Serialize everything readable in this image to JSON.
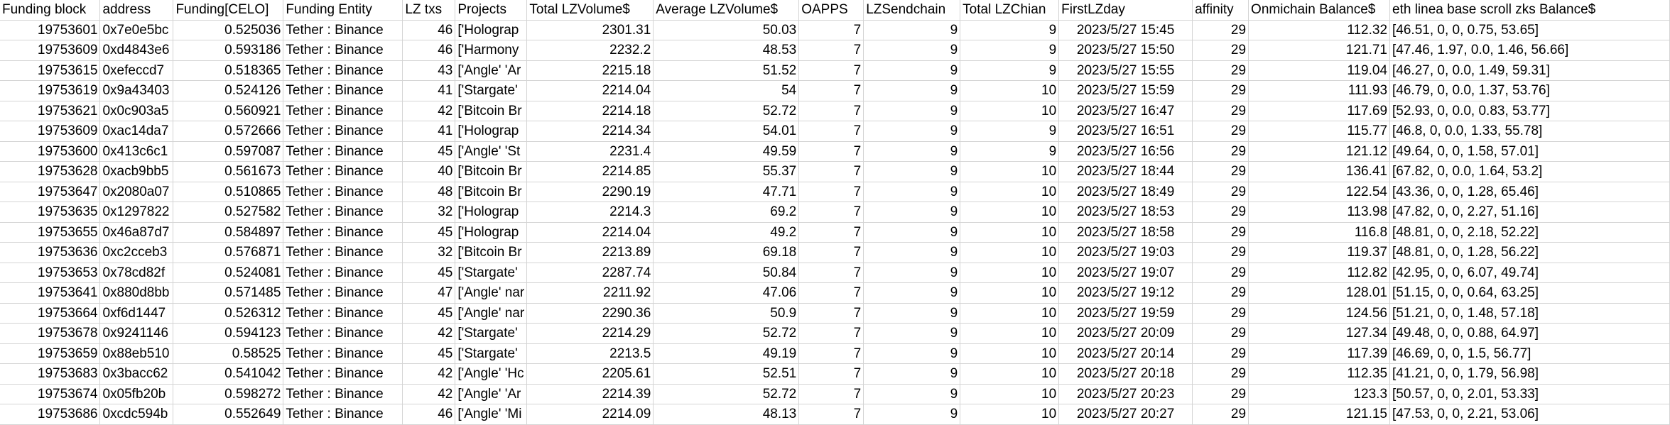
{
  "columns": [
    "Funding block",
    "address",
    "Funding[CELO]",
    "Funding Entity",
    "LZ txs",
    "Projects",
    "Total LZVolume$",
    "Average LZVolume$",
    "OAPPS",
    "LZSendchain",
    "Total LZChian",
    "FirstLZday",
    "affinity",
    "Onmichain Balance$",
    "eth linea base scroll zks Balance$"
  ],
  "rows": [
    [
      "19753601",
      "0x7e0e5bc",
      "0.525036",
      "Tether : Binance",
      "46",
      "['Holograp",
      "2301.31",
      "50.03",
      "7",
      "9",
      "9",
      "2023/5/27 15:45",
      "29",
      "112.32",
      "[46.51, 0, 0, 0.75, 53.65]"
    ],
    [
      "19753609",
      "0xd4843e6",
      "0.593186",
      "Tether : Binance",
      "46",
      "['Harmony",
      "2232.2",
      "48.53",
      "7",
      "9",
      "9",
      "2023/5/27 15:50",
      "29",
      "121.71",
      "[47.46, 1.97, 0.0, 1.46, 56.66]"
    ],
    [
      "19753615",
      "0xefeccd7",
      "0.518365",
      "Tether : Binance",
      "43",
      "['Angle' 'Ar",
      "2215.18",
      "51.52",
      "7",
      "9",
      "9",
      "2023/5/27 15:55",
      "29",
      "119.04",
      "[46.27, 0, 0.0, 1.49, 59.31]"
    ],
    [
      "19753619",
      "0x9a43403",
      "0.524126",
      "Tether : Binance",
      "41",
      "['Stargate'",
      "2214.04",
      "54",
      "7",
      "9",
      "10",
      "2023/5/27 15:59",
      "29",
      "111.93",
      "[46.79, 0, 0.0, 1.37, 53.76]"
    ],
    [
      "19753621",
      "0x0c903a5",
      "0.560921",
      "Tether : Binance",
      "42",
      "['Bitcoin Br",
      "2214.18",
      "52.72",
      "7",
      "9",
      "10",
      "2023/5/27 16:47",
      "29",
      "117.69",
      "[52.93, 0, 0.0, 0.83, 53.77]"
    ],
    [
      "19753609",
      "0xac14da7",
      "0.572666",
      "Tether : Binance",
      "41",
      "['Holograp",
      "2214.34",
      "54.01",
      "7",
      "9",
      "9",
      "2023/5/27 16:51",
      "29",
      "115.77",
      "[46.8, 0, 0.0, 1.33, 55.78]"
    ],
    [
      "19753600",
      "0x413c6c1",
      "0.597087",
      "Tether : Binance",
      "45",
      "['Angle' 'St",
      "2231.4",
      "49.59",
      "7",
      "9",
      "9",
      "2023/5/27 16:56",
      "29",
      "121.12",
      "[49.64, 0, 0, 1.58, 57.01]"
    ],
    [
      "19753628",
      "0xacb9bb5",
      "0.561673",
      "Tether : Binance",
      "40",
      "['Bitcoin Br",
      "2214.85",
      "55.37",
      "7",
      "9",
      "10",
      "2023/5/27 18:44",
      "29",
      "136.41",
      "[67.82, 0, 0.0, 1.64, 53.2]"
    ],
    [
      "19753647",
      "0x2080a07",
      "0.510865",
      "Tether : Binance",
      "48",
      "['Bitcoin Br",
      "2290.19",
      "47.71",
      "7",
      "9",
      "10",
      "2023/5/27 18:49",
      "29",
      "122.54",
      "[43.36, 0, 0, 1.28, 65.46]"
    ],
    [
      "19753635",
      "0x1297822",
      "0.527582",
      "Tether : Binance",
      "32",
      "['Holograp",
      "2214.3",
      "69.2",
      "7",
      "9",
      "10",
      "2023/5/27 18:53",
      "29",
      "113.98",
      "[47.82, 0, 0, 2.27, 51.16]"
    ],
    [
      "19753655",
      "0x46a87d7",
      "0.584897",
      "Tether : Binance",
      "45",
      "['Holograp",
      "2214.04",
      "49.2",
      "7",
      "9",
      "10",
      "2023/5/27 18:58",
      "29",
      "116.8",
      "[48.81, 0, 0, 2.18, 52.22]"
    ],
    [
      "19753636",
      "0xc2cceb3",
      "0.576871",
      "Tether : Binance",
      "32",
      "['Bitcoin Br",
      "2213.89",
      "69.18",
      "7",
      "9",
      "10",
      "2023/5/27 19:03",
      "29",
      "119.37",
      "[48.81, 0, 0, 1.28, 56.22]"
    ],
    [
      "19753653",
      "0x78cd82f",
      "0.524081",
      "Tether : Binance",
      "45",
      "['Stargate'",
      "2287.74",
      "50.84",
      "7",
      "9",
      "10",
      "2023/5/27 19:07",
      "29",
      "112.82",
      "[42.95, 0, 0, 6.07, 49.74]"
    ],
    [
      "19753641",
      "0x880d8bb",
      "0.571485",
      "Tether : Binance",
      "47",
      "['Angle' nar",
      "2211.92",
      "47.06",
      "7",
      "9",
      "10",
      "2023/5/27 19:12",
      "29",
      "128.01",
      "[51.15, 0, 0, 0.64, 63.25]"
    ],
    [
      "19753664",
      "0xf6d1447",
      "0.526312",
      "Tether : Binance",
      "45",
      "['Angle' nar",
      "2290.36",
      "50.9",
      "7",
      "9",
      "10",
      "2023/5/27 19:59",
      "29",
      "124.56",
      "[51.21, 0, 0, 1.48, 57.18]"
    ],
    [
      "19753678",
      "0x9241146",
      "0.594123",
      "Tether : Binance",
      "42",
      "['Stargate'",
      "2214.29",
      "52.72",
      "7",
      "9",
      "10",
      "2023/5/27 20:09",
      "29",
      "127.34",
      "[49.48, 0, 0, 0.88, 64.97]"
    ],
    [
      "19753659",
      "0x88eb510",
      "0.58525",
      "Tether : Binance",
      "45",
      "['Stargate'",
      "2213.5",
      "49.19",
      "7",
      "9",
      "10",
      "2023/5/27 20:14",
      "29",
      "117.39",
      "[46.69, 0, 0, 1.5, 56.77]"
    ],
    [
      "19753683",
      "0x3bacc62",
      "0.541042",
      "Tether : Binance",
      "42",
      "['Angle' 'Hc",
      "2205.61",
      "52.51",
      "7",
      "9",
      "10",
      "2023/5/27 20:18",
      "29",
      "112.35",
      "[41.21, 0, 0, 1.79, 56.98]"
    ],
    [
      "19753674",
      "0x05fb20b",
      "0.598272",
      "Tether : Binance",
      "42",
      "['Angle' 'Ar",
      "2214.39",
      "52.72",
      "7",
      "9",
      "10",
      "2023/5/27 20:23",
      "29",
      "123.3",
      "[50.57, 0, 0, 2.01, 53.33]"
    ],
    [
      "19753686",
      "0xcdc594b",
      "0.552649",
      "Tether : Binance",
      "46",
      "['Angle' 'Mi",
      "2214.09",
      "48.13",
      "7",
      "9",
      "10",
      "2023/5/27 20:27",
      "29",
      "121.15",
      "[47.53, 0, 0, 2.21, 53.06]"
    ]
  ]
}
